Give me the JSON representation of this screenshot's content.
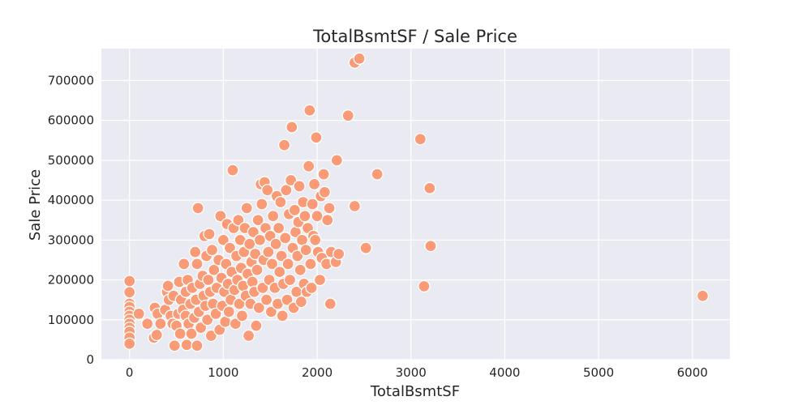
{
  "chart_data": {
    "type": "scatter",
    "title": "TotalBsmtSF / Sale Price",
    "xlabel": "TotalBsmtSF",
    "ylabel": "Sale Price",
    "xlim": [
      -300,
      6400
    ],
    "ylim": [
      0,
      780000
    ],
    "xticks": [
      0,
      1000,
      2000,
      3000,
      4000,
      5000,
      6000
    ],
    "yticks": [
      0,
      100000,
      200000,
      300000,
      400000,
      500000,
      600000,
      700000
    ],
    "grid": true,
    "point_color": "#fa9b77",
    "background_color": "#eaeaf2",
    "points": [
      [
        0,
        197000
      ],
      [
        0,
        169000
      ],
      [
        0,
        140000
      ],
      [
        0,
        132000
      ],
      [
        0,
        120000
      ],
      [
        0,
        110000
      ],
      [
        0,
        100000
      ],
      [
        0,
        90000
      ],
      [
        0,
        80000
      ],
      [
        0,
        70000
      ],
      [
        0,
        55000
      ],
      [
        0,
        40000
      ],
      [
        100,
        115000
      ],
      [
        190,
        90000
      ],
      [
        260,
        55000
      ],
      [
        270,
        130000
      ],
      [
        290,
        62000
      ],
      [
        300,
        115000
      ],
      [
        330,
        90000
      ],
      [
        380,
        125000
      ],
      [
        400,
        170000
      ],
      [
        410,
        185000
      ],
      [
        420,
        150000
      ],
      [
        440,
        110000
      ],
      [
        460,
        90000
      ],
      [
        470,
        160000
      ],
      [
        480,
        35000
      ],
      [
        500,
        85000
      ],
      [
        520,
        115000
      ],
      [
        530,
        195000
      ],
      [
        540,
        65000
      ],
      [
        550,
        150000
      ],
      [
        570,
        125000
      ],
      [
        580,
        240000
      ],
      [
        600,
        110000
      ],
      [
        600,
        170000
      ],
      [
        610,
        37000
      ],
      [
        620,
        200000
      ],
      [
        630,
        90000
      ],
      [
        650,
        140000
      ],
      [
        660,
        65000
      ],
      [
        670,
        180000
      ],
      [
        690,
        105000
      ],
      [
        700,
        270000
      ],
      [
        710,
        150000
      ],
      [
        720,
        35000
      ],
      [
        720,
        240000
      ],
      [
        730,
        380000
      ],
      [
        740,
        120000
      ],
      [
        750,
        190000
      ],
      [
        760,
        80000
      ],
      [
        780,
        210000
      ],
      [
        790,
        160000
      ],
      [
        800,
        310000
      ],
      [
        810,
        135000
      ],
      [
        820,
        260000
      ],
      [
        830,
        100000
      ],
      [
        840,
        200000
      ],
      [
        850,
        315000
      ],
      [
        860,
        170000
      ],
      [
        870,
        60000
      ],
      [
        880,
        275000
      ],
      [
        890,
        140000
      ],
      [
        900,
        225000
      ],
      [
        920,
        115000
      ],
      [
        930,
        180000
      ],
      [
        950,
        250000
      ],
      [
        960,
        75000
      ],
      [
        970,
        360000
      ],
      [
        980,
        205000
      ],
      [
        990,
        135000
      ],
      [
        1000,
        300000
      ],
      [
        1010,
        170000
      ],
      [
        1020,
        95000
      ],
      [
        1030,
        240000
      ],
      [
        1040,
        340000
      ],
      [
        1050,
        190000
      ],
      [
        1060,
        120000
      ],
      [
        1070,
        280000
      ],
      [
        1080,
        150000
      ],
      [
        1090,
        220000
      ],
      [
        1100,
        475000
      ],
      [
        1110,
        330000
      ],
      [
        1120,
        175000
      ],
      [
        1130,
        90000
      ],
      [
        1140,
        260000
      ],
      [
        1150,
        200000
      ],
      [
        1160,
        350000
      ],
      [
        1170,
        140000
      ],
      [
        1180,
        300000
      ],
      [
        1190,
        230000
      ],
      [
        1200,
        110000
      ],
      [
        1210,
        185000
      ],
      [
        1220,
        270000
      ],
      [
        1230,
        330000
      ],
      [
        1240,
        160000
      ],
      [
        1250,
        380000
      ],
      [
        1260,
        215000
      ],
      [
        1270,
        60000
      ],
      [
        1280,
        290000
      ],
      [
        1290,
        140000
      ],
      [
        1300,
        245000
      ],
      [
        1310,
        195000
      ],
      [
        1320,
        320000
      ],
      [
        1330,
        170000
      ],
      [
        1340,
        265000
      ],
      [
        1350,
        85000
      ],
      [
        1360,
        225000
      ],
      [
        1370,
        350000
      ],
      [
        1380,
        130000
      ],
      [
        1390,
        300000
      ],
      [
        1400,
        440000
      ],
      [
        1410,
        390000
      ],
      [
        1420,
        180000
      ],
      [
        1430,
        250000
      ],
      [
        1440,
        445000
      ],
      [
        1450,
        330000
      ],
      [
        1460,
        150000
      ],
      [
        1470,
        425000
      ],
      [
        1480,
        270000
      ],
      [
        1490,
        200000
      ],
      [
        1500,
        310000
      ],
      [
        1510,
        120000
      ],
      [
        1520,
        240000
      ],
      [
        1530,
        360000
      ],
      [
        1550,
        180000
      ],
      [
        1560,
        290000
      ],
      [
        1570,
        410000
      ],
      [
        1580,
        140000
      ],
      [
        1590,
        330000
      ],
      [
        1600,
        220000
      ],
      [
        1610,
        395000
      ],
      [
        1620,
        260000
      ],
      [
        1630,
        110000
      ],
      [
        1640,
        190000
      ],
      [
        1650,
        538000
      ],
      [
        1660,
        305000
      ],
      [
        1670,
        425000
      ],
      [
        1680,
        150000
      ],
      [
        1690,
        240000
      ],
      [
        1700,
        365000
      ],
      [
        1710,
        200000
      ],
      [
        1720,
        450000
      ],
      [
        1730,
        583000
      ],
      [
        1740,
        280000
      ],
      [
        1750,
        130000
      ],
      [
        1760,
        375000
      ],
      [
        1770,
        320000
      ],
      [
        1780,
        170000
      ],
      [
        1790,
        260000
      ],
      [
        1800,
        345000
      ],
      [
        1810,
        435000
      ],
      [
        1820,
        225000
      ],
      [
        1830,
        145000
      ],
      [
        1840,
        300000
      ],
      [
        1850,
        395000
      ],
      [
        1860,
        190000
      ],
      [
        1870,
        360000
      ],
      [
        1880,
        275000
      ],
      [
        1890,
        170000
      ],
      [
        1900,
        330000
      ],
      [
        1910,
        485000
      ],
      [
        1920,
        625000
      ],
      [
        1930,
        240000
      ],
      [
        1940,
        180000
      ],
      [
        1950,
        390000
      ],
      [
        1960,
        310000
      ],
      [
        1970,
        440000
      ],
      [
        1980,
        300000
      ],
      [
        1990,
        557000
      ],
      [
        2000,
        360000
      ],
      [
        2010,
        270000
      ],
      [
        2030,
        200000
      ],
      [
        2040,
        410000
      ],
      [
        2050,
        255000
      ],
      [
        2070,
        465000
      ],
      [
        2080,
        420000
      ],
      [
        2100,
        240000
      ],
      [
        2110,
        350000
      ],
      [
        2130,
        380000
      ],
      [
        2140,
        140000
      ],
      [
        2150,
        270000
      ],
      [
        2200,
        245000
      ],
      [
        2210,
        500000
      ],
      [
        2230,
        265000
      ],
      [
        2330,
        612000
      ],
      [
        2400,
        745000
      ],
      [
        2400,
        385000
      ],
      [
        2450,
        755000
      ],
      [
        2520,
        280000
      ],
      [
        2640,
        465000
      ],
      [
        3100,
        553000
      ],
      [
        3140,
        184000
      ],
      [
        3200,
        430000
      ],
      [
        3210,
        285000
      ],
      [
        6110,
        160000
      ]
    ]
  }
}
